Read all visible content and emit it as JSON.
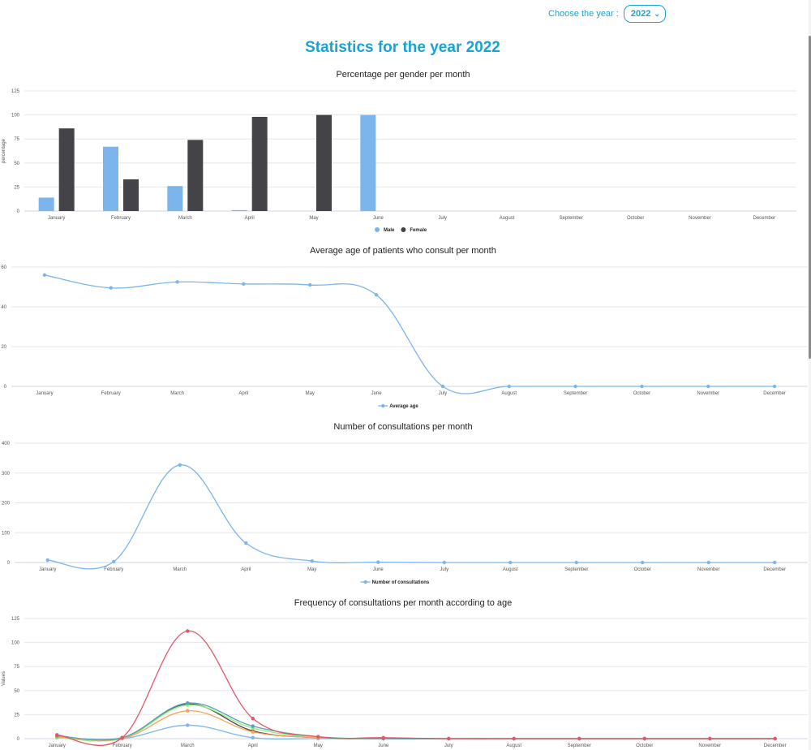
{
  "header": {
    "year_label": "Choose the year :",
    "year_value": "2022",
    "page_title": "Statistics for the year 2022"
  },
  "chart_data": [
    {
      "type": "bar",
      "title": "Percentage per gender per month",
      "ylabel": "percentage",
      "categories": [
        "January",
        "February",
        "March",
        "April",
        "May",
        "June",
        "July",
        "August",
        "September",
        "October",
        "November",
        "December"
      ],
      "ylim": [
        0,
        125
      ],
      "yticks": [
        0,
        25,
        50,
        75,
        100,
        125
      ],
      "series": [
        {
          "name": "Male",
          "color": "#7cb5ec",
          "values": [
            14,
            67,
            26,
            1,
            0,
            100,
            0,
            0,
            0,
            0,
            0,
            0
          ]
        },
        {
          "name": "Female",
          "color": "#434348",
          "values": [
            86,
            33,
            74,
            98,
            100,
            0,
            0,
            0,
            0,
            0,
            0,
            0
          ]
        }
      ],
      "legend": "bottom-center",
      "grid": true
    },
    {
      "type": "line",
      "title": "Average age of patients who consult per month",
      "categories": [
        "January",
        "February",
        "March",
        "April",
        "May",
        "June",
        "July",
        "August",
        "September",
        "October",
        "November",
        "December"
      ],
      "ylim": [
        0,
        60
      ],
      "yticks": [
        0,
        20,
        40,
        60
      ],
      "ytick_labels": [
        "0",
        "20",
        "40",
        "60"
      ],
      "series": [
        {
          "name": "Average age",
          "color": "#7cb5ec",
          "values": [
            56,
            49.5,
            52.5,
            51.5,
            51,
            46,
            0,
            0,
            0,
            0,
            0,
            0
          ]
        }
      ],
      "legend": "bottom-center",
      "grid": true
    },
    {
      "type": "line",
      "title": "Number of consultations per month",
      "categories": [
        "January",
        "February",
        "March",
        "April",
        "May",
        "June",
        "July",
        "August",
        "September",
        "October",
        "November",
        "December"
      ],
      "ylim": [
        0,
        400
      ],
      "yticks": [
        0,
        100,
        200,
        300,
        400
      ],
      "ytick_labels": [
        "0",
        "100",
        "200",
        "300",
        "400"
      ],
      "series": [
        {
          "name": "Number of consultations",
          "color": "#7cb5ec",
          "values": [
            8,
            3,
            327,
            65,
            5,
            1,
            0,
            0,
            0,
            0,
            0,
            0
          ]
        }
      ],
      "legend": "bottom-center",
      "grid": true
    },
    {
      "type": "line",
      "title": "Frequency of consultations per month according to age",
      "ylabel": "Values",
      "categories": [
        "January",
        "February",
        "March",
        "April",
        "May",
        "June",
        "July",
        "August",
        "September",
        "October",
        "November",
        "December"
      ],
      "ylim": [
        0,
        125
      ],
      "yticks": [
        0,
        25,
        50,
        75,
        100,
        125
      ],
      "series": [
        {
          "color": "#7cb5ec",
          "values": [
            1,
            0,
            14,
            1,
            0,
            0,
            0,
            0,
            0,
            0,
            0,
            0
          ]
        },
        {
          "color": "#434348",
          "values": [
            2,
            1,
            36,
            8,
            1,
            0,
            0,
            0,
            0,
            0,
            0,
            0
          ]
        },
        {
          "color": "#90ed7d",
          "values": [
            1,
            0,
            35,
            11,
            1,
            0,
            0,
            0,
            0,
            0,
            0,
            0
          ]
        },
        {
          "color": "#f7a35c",
          "values": [
            2,
            0,
            29,
            7,
            1,
            0,
            0,
            0,
            0,
            0,
            0,
            0
          ]
        },
        {
          "color": "#5b9fb5",
          "values": [
            3,
            1,
            37,
            13,
            2,
            0,
            0,
            0,
            0,
            0,
            0,
            0
          ]
        },
        {
          "color": "#e4566a",
          "values": [
            4,
            1,
            112,
            21,
            2,
            1,
            0,
            0,
            0,
            0,
            0,
            0
          ]
        }
      ],
      "grid": true
    }
  ]
}
